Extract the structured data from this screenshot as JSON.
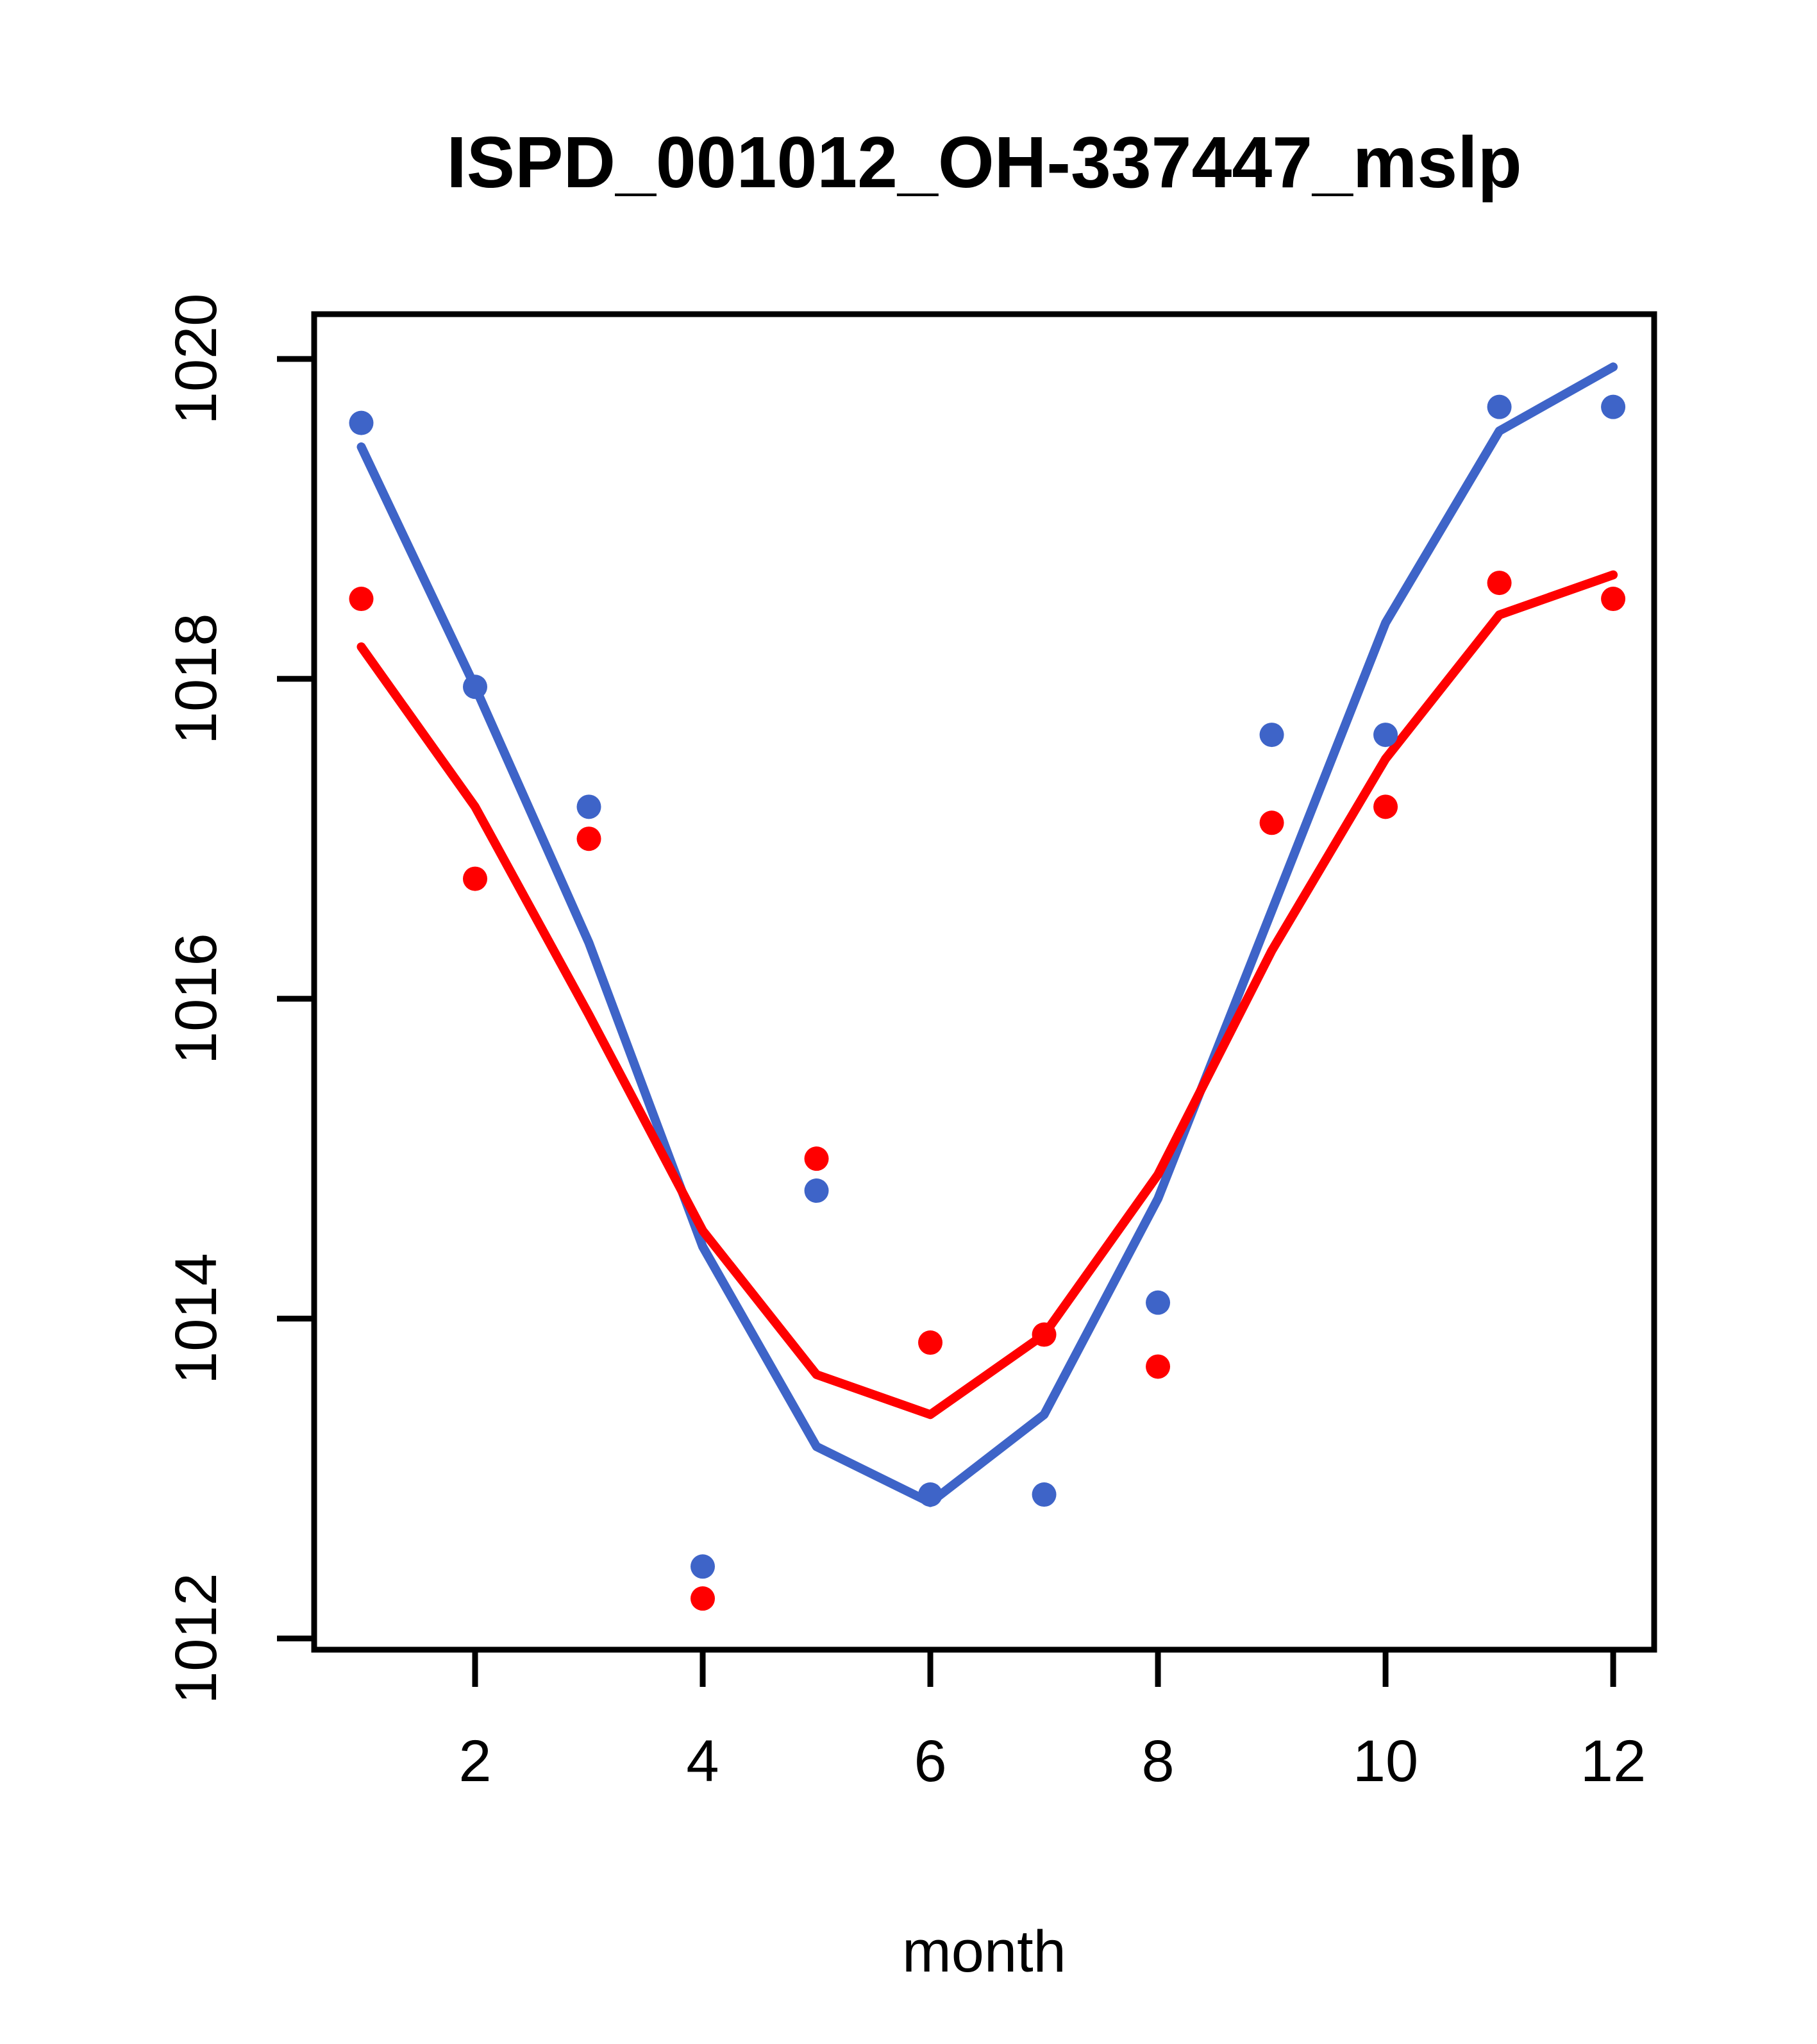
{
  "title": "ISPD_001012_OH-337447_mslp",
  "chart_data": {
    "type": "line+scatter",
    "x": [
      1,
      2,
      3,
      4,
      5,
      6,
      7,
      8,
      9,
      10,
      11,
      12
    ],
    "xlabel": "month",
    "ylabel": "",
    "xticks": [
      2,
      4,
      6,
      8,
      10,
      12
    ],
    "yticks": [
      1012,
      1014,
      1016,
      1018,
      1020
    ],
    "xlim": [
      0.586,
      12.36
    ],
    "ylim": [
      1011.93,
      1020.28
    ],
    "grid": false,
    "legend_position": "none",
    "series": [
      {
        "name": "blue-points",
        "type": "scatter",
        "color": "#3E64C8",
        "values": [
          1019.6,
          1017.95,
          1017.2,
          1012.45,
          1014.8,
          1012.9,
          1012.9,
          1014.1,
          1017.65,
          1017.65,
          1019.7,
          1019.7
        ]
      },
      {
        "name": "red-points",
        "type": "scatter",
        "color": "#FF0000",
        "values": [
          1018.5,
          1016.75,
          1017.0,
          1012.25,
          1015.0,
          1013.85,
          1013.9,
          1013.7,
          1017.1,
          1017.2,
          1018.6,
          1018.5
        ]
      },
      {
        "name": "blue-line",
        "type": "line",
        "color": "#3E64C8",
        "values": [
          1019.45,
          1017.95,
          1016.35,
          1014.45,
          1013.2,
          1012.85,
          1013.4,
          1014.75,
          1016.55,
          1018.35,
          1019.55,
          1019.95
        ]
      },
      {
        "name": "red-line",
        "type": "line",
        "color": "#FF0000",
        "values": [
          1018.2,
          1017.2,
          1015.9,
          1014.55,
          1013.65,
          1013.4,
          1013.9,
          1014.9,
          1016.3,
          1017.5,
          1018.4,
          1018.65
        ]
      }
    ]
  },
  "colors": {
    "blue": "#3E64C8",
    "red": "#FF0000",
    "axis": "#000000",
    "background": "#FFFFFF"
  }
}
